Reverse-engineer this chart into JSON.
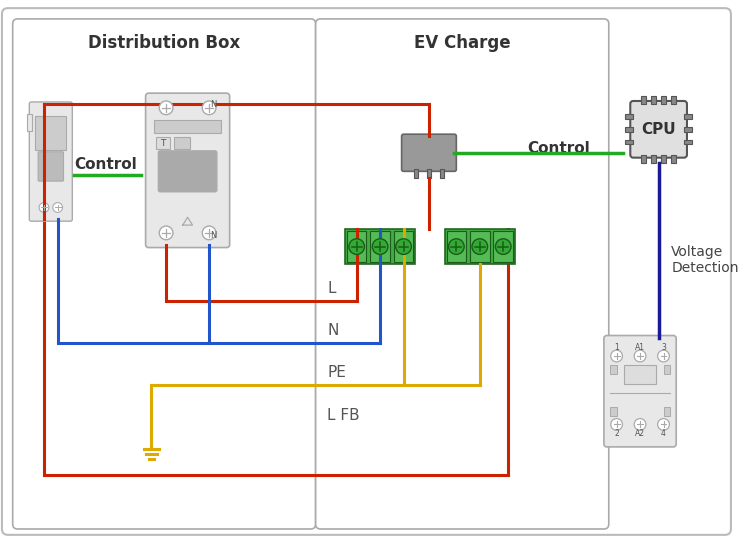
{
  "bg_color": "#ffffff",
  "title_dist_box": "Distribution Box",
  "title_ev_charge": "EV Charge",
  "label_control_left": "Control",
  "label_control_right": "Control",
  "label_voltage": "Voltage\nDetection",
  "label_L": "L",
  "label_N": "N",
  "label_PE": "PE",
  "label_LFB": "L FB",
  "color_red": "#cc2200",
  "color_blue": "#2255cc",
  "color_yellow": "#ddaa00",
  "color_green": "#22aa22",
  "color_darkblue": "#1a1a99",
  "color_component": "#aaaaaa",
  "color_component_fill": "#e8e8e8",
  "wire_lw": 2.2
}
